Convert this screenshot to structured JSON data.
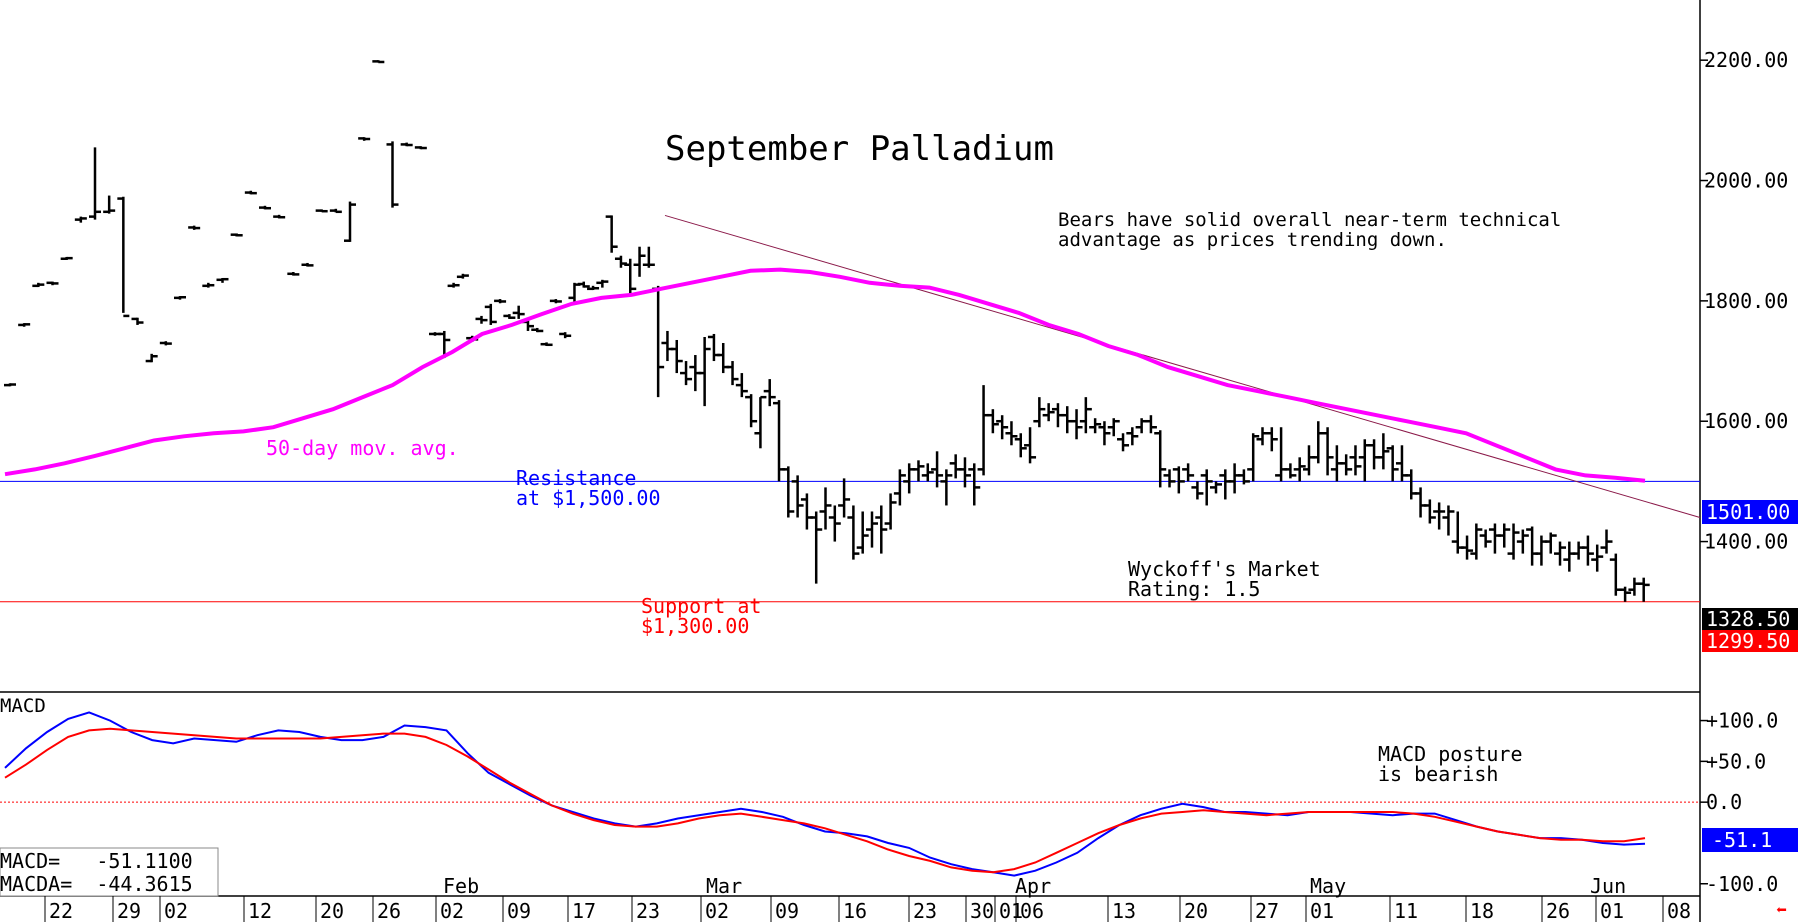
{
  "chart_data": [
    {
      "type": "ohlc",
      "title": "September Palladium",
      "ylim": [
        1150,
        2300
      ],
      "yticks": [
        1400,
        1600,
        1800,
        2000,
        2200
      ],
      "ytick_labels": [
        "1400.00",
        "1600.00",
        "1800.00",
        "2000.00",
        "2200.00"
      ],
      "months": [
        "Feb",
        "Mar",
        "Apr",
        "May",
        "Jun"
      ],
      "date_labels": [
        "22",
        "29",
        "02",
        "12",
        "20",
        "26",
        "02",
        "09",
        "17",
        "23",
        "02",
        "09",
        "16",
        "23",
        "30",
        "01",
        "06",
        "13",
        "20",
        "27",
        "01",
        "11",
        "18",
        "26",
        "01",
        "08"
      ],
      "annotations": {
        "commentary": "Bears have solid overall near-term technical advantage as prices trending down.",
        "ma_label": "50-day mov. avg.",
        "resistance_label_1": "Resistance",
        "resistance_label_2": "at $1,500.00",
        "support_label_1": "Support at",
        "support_label_2": "$1,300.00",
        "rating_label_1": "Wyckoff's Market",
        "rating_label_2": "Rating: 1.5"
      },
      "price_tags": {
        "ma_value": "1501.00",
        "last_price": "1328.50",
        "support_value": "1299.50"
      },
      "resistance_level": 1500,
      "support_level": 1300,
      "trendline": {
        "start": 1942,
        "end": 1440
      },
      "bars": [
        [
          1660,
          1663,
          1658,
          1661
        ],
        [
          1760,
          1763,
          1757,
          1761
        ],
        [
          1825,
          1830,
          1823,
          1827
        ],
        [
          1830,
          1832,
          1826,
          1829
        ],
        [
          1870,
          1873,
          1868,
          1871
        ],
        [
          1935,
          1940,
          1930,
          1937
        ],
        [
          1940,
          2055,
          1935,
          1948
        ],
        [
          1948,
          1975,
          1945,
          1950
        ],
        [
          1970,
          1973,
          1780,
          1775
        ],
        [
          1770,
          1772,
          1760,
          1764
        ],
        [
          1700,
          1712,
          1698,
          1708
        ],
        [
          1730,
          1733,
          1726,
          1729
        ],
        [
          1805,
          1808,
          1802,
          1806
        ],
        [
          1922,
          1925,
          1918,
          1921
        ],
        [
          1825,
          1830,
          1822,
          1826
        ],
        [
          1835,
          1838,
          1830,
          1836
        ],
        [
          1910,
          1912,
          1907,
          1909
        ],
        [
          1980,
          1983,
          1977,
          1979
        ],
        [
          1955,
          1958,
          1952,
          1954
        ],
        [
          1940,
          1943,
          1937,
          1939
        ],
        [
          1845,
          1848,
          1842,
          1844
        ],
        [
          1860,
          1863,
          1857,
          1859
        ],
        [
          1950,
          1952,
          1948,
          1949
        ],
        [
          1950,
          1953,
          1947,
          1948
        ],
        [
          1900,
          1965,
          1898,
          1960
        ],
        [
          2070,
          2072,
          2066,
          2069
        ],
        [
          2198,
          2200,
          2196,
          2197
        ],
        [
          2060,
          2065,
          1955,
          1960
        ],
        [
          2060,
          2063,
          2057,
          2059
        ],
        [
          2055,
          2057,
          2052,
          2054
        ]
      ],
      "bars2": [
        [
          1745,
          1748,
          1742,
          1745
        ],
        [
          1745,
          1750,
          1705,
          1735
        ],
        [
          1825,
          1830,
          1822,
          1826
        ],
        [
          1840,
          1845,
          1837,
          1842
        ],
        [
          1738,
          1742,
          1732,
          1736
        ],
        [
          1770,
          1775,
          1762,
          1768
        ],
        [
          1790,
          1795,
          1760,
          1765
        ],
        [
          1800,
          1803,
          1796,
          1799
        ],
        [
          1775,
          1778,
          1770,
          1772
        ],
        [
          1780,
          1792,
          1770,
          1778
        ],
        [
          1765,
          1770,
          1750,
          1758
        ],
        [
          1752,
          1755,
          1748,
          1750
        ],
        [
          1728,
          1731,
          1725,
          1727
        ],
        [
          1800,
          1803,
          1796,
          1799
        ],
        [
          1745,
          1748,
          1738,
          1742
        ],
        [
          1805,
          1830,
          1795,
          1827
        ],
        [
          1828,
          1832,
          1822,
          1824
        ],
        [
          1820,
          1825,
          1818,
          1821
        ],
        [
          1830,
          1835,
          1822,
          1832
        ],
        [
          1940,
          1942,
          1880,
          1890
        ],
        [
          1870,
          1875,
          1855,
          1862
        ],
        [
          1860,
          1870,
          1810,
          1820
        ],
        [
          1860,
          1890,
          1840,
          1875
        ],
        [
          1860,
          1890,
          1855,
          1860
        ],
        [
          1820,
          1825,
          1640,
          1690
        ],
        [
          1730,
          1750,
          1700,
          1720
        ],
        [
          1720,
          1735,
          1680,
          1700
        ],
        [
          1680,
          1700,
          1660,
          1670
        ],
        [
          1690,
          1710,
          1650,
          1680
        ],
        [
          1680,
          1740,
          1625,
          1720
        ],
        [
          1740,
          1745,
          1700,
          1710
        ],
        [
          1710,
          1730,
          1680,
          1690
        ],
        [
          1690,
          1700,
          1660,
          1670
        ],
        [
          1660,
          1680,
          1640,
          1650
        ],
        [
          1640,
          1645,
          1590,
          1600
        ],
        [
          1580,
          1640,
          1555,
          1640
        ],
        [
          1650,
          1670,
          1625,
          1640
        ],
        [
          1630,
          1635,
          1500,
          1520
        ],
        [
          1520,
          1525,
          1440,
          1450
        ],
        [
          1500,
          1510,
          1440,
          1460
        ],
        [
          1470,
          1480,
          1420,
          1440
        ],
        [
          1440,
          1450,
          1330,
          1420
        ],
        [
          1450,
          1490,
          1420,
          1460
        ],
        [
          1440,
          1460,
          1400,
          1430
        ],
        [
          1460,
          1505,
          1440,
          1470
        ],
        [
          1440,
          1460,
          1370,
          1380
        ],
        [
          1390,
          1450,
          1380,
          1410
        ],
        [
          1420,
          1450,
          1390,
          1430
        ],
        [
          1440,
          1460,
          1380,
          1420
        ],
        [
          1430,
          1480,
          1420,
          1465
        ],
        [
          1480,
          1520,
          1460,
          1510
        ],
        [
          1500,
          1530,
          1480,
          1520
        ],
        [
          1520,
          1535,
          1500,
          1525
        ],
        [
          1510,
          1530,
          1500,
          1515
        ],
        [
          1520,
          1550,
          1490,
          1510
        ],
        [
          1500,
          1520,
          1460,
          1510
        ],
        [
          1530,
          1545,
          1505,
          1520
        ],
        [
          1520,
          1540,
          1490,
          1510
        ],
        [
          1520,
          1530,
          1460,
          1490
        ],
        [
          1520,
          1660,
          1510,
          1610
        ],
        [
          1610,
          1620,
          1580,
          1595
        ],
        [
          1600,
          1610,
          1570,
          1590
        ],
        [
          1580,
          1600,
          1560,
          1575
        ],
        [
          1570,
          1580,
          1540,
          1555
        ],
        [
          1560,
          1590,
          1530,
          1540
        ],
        [
          1600,
          1640,
          1590,
          1620
        ],
        [
          1610,
          1630,
          1600,
          1615
        ],
        [
          1620,
          1630,
          1590,
          1610
        ],
        [
          1610,
          1625,
          1580,
          1600
        ],
        [
          1600,
          1620,
          1570,
          1590
        ],
        [
          1600,
          1640,
          1580,
          1620
        ],
        [
          1590,
          1605,
          1580,
          1595
        ],
        [
          1590,
          1600,
          1560,
          1580
        ],
        [
          1590,
          1605,
          1575,
          1600
        ],
        [
          1570,
          1580,
          1550,
          1560
        ],
        [
          1580,
          1590,
          1560,
          1575
        ],
        [
          1590,
          1605,
          1580,
          1600
        ],
        [
          1600,
          1610,
          1580,
          1590
        ],
        [
          1580,
          1585,
          1490,
          1520
        ],
        [
          1510,
          1520,
          1490,
          1500
        ],
        [
          1520,
          1525,
          1480,
          1500
        ],
        [
          1520,
          1530,
          1500,
          1510
        ],
        [
          1490,
          1500,
          1470,
          1480
        ],
        [
          1510,
          1520,
          1460,
          1500
        ],
        [
          1490,
          1500,
          1480,
          1495
        ],
        [
          1510,
          1520,
          1470,
          1500
        ],
        [
          1500,
          1530,
          1480,
          1510
        ],
        [
          1510,
          1520,
          1495,
          1500
        ],
        [
          1520,
          1580,
          1500,
          1575
        ],
        [
          1570,
          1590,
          1560,
          1580
        ],
        [
          1580,
          1590,
          1550,
          1570
        ],
        [
          1510,
          1590,
          1500,
          1520
        ],
        [
          1520,
          1530,
          1505,
          1510
        ],
        [
          1520,
          1540,
          1500,
          1525
        ],
        [
          1520,
          1560,
          1510,
          1540
        ],
        [
          1540,
          1600,
          1530,
          1580
        ],
        [
          1580,
          1590,
          1510,
          1540
        ],
        [
          1520,
          1560,
          1500,
          1530
        ],
        [
          1530,
          1545,
          1510,
          1520
        ],
        [
          1540,
          1560,
          1510,
          1525
        ],
        [
          1540,
          1570,
          1500,
          1560
        ],
        [
          1560,
          1570,
          1520,
          1540
        ],
        [
          1540,
          1580,
          1520,
          1550
        ],
        [
          1555,
          1560,
          1500,
          1520
        ],
        [
          1530,
          1560,
          1500,
          1510
        ],
        [
          1510,
          1520,
          1470,
          1480
        ],
        [
          1480,
          1490,
          1440,
          1460
        ],
        [
          1460,
          1470,
          1430,
          1440
        ],
        [
          1450,
          1465,
          1420,
          1450
        ],
        [
          1440,
          1460,
          1410,
          1450
        ],
        [
          1400,
          1450,
          1380,
          1390
        ],
        [
          1390,
          1410,
          1370,
          1385
        ],
        [
          1380,
          1430,
          1370,
          1420
        ],
        [
          1410,
          1420,
          1390,
          1400
        ],
        [
          1420,
          1430,
          1380,
          1410
        ],
        [
          1410,
          1430,
          1390,
          1420
        ],
        [
          1380,
          1430,
          1370,
          1415
        ],
        [
          1400,
          1420,
          1380,
          1410
        ],
        [
          1420,
          1425,
          1360,
          1380
        ],
        [
          1380,
          1410,
          1360,
          1400
        ],
        [
          1400,
          1415,
          1380,
          1410
        ],
        [
          1380,
          1400,
          1360,
          1390
        ],
        [
          1370,
          1400,
          1350,
          1380
        ],
        [
          1380,
          1400,
          1370,
          1390
        ],
        [
          1390,
          1410,
          1360,
          1380
        ],
        [
          1370,
          1395,
          1350,
          1375
        ],
        [
          1390,
          1420,
          1380,
          1400
        ],
        [
          1370,
          1380,
          1310,
          1320
        ],
        [
          1320,
          1325,
          1300,
          1315
        ],
        [
          1320,
          1340,
          1310,
          1330
        ],
        [
          1330,
          1340,
          1300,
          1328
        ]
      ],
      "ma": [
        1512,
        1520,
        1530,
        1542,
        1555,
        1568,
        1575,
        1580,
        1583,
        1590,
        1605,
        1620,
        1640,
        1660,
        1690,
        1715,
        1745,
        1760,
        1778,
        1795,
        1805,
        1810,
        1820,
        1830,
        1840,
        1850,
        1852,
        1848,
        1840,
        1830,
        1825,
        1822,
        1810,
        1795,
        1780,
        1760,
        1745,
        1725,
        1710,
        1690,
        1675,
        1660,
        1650,
        1640,
        1630,
        1620,
        1610,
        1600,
        1590,
        1580,
        1560,
        1540,
        1520,
        1510,
        1506,
        1501
      ]
    },
    {
      "type": "line",
      "title": "MACD",
      "ylim": [
        -115,
        135
      ],
      "yticks": [
        100,
        50,
        0,
        -100
      ],
      "ytick_labels": [
        "+100.0",
        "+50.0",
        "0.0",
        "-100.0"
      ],
      "annotation_1": "MACD posture",
      "annotation_2": "is bearish",
      "readout_macd": "MACD=   -51.1100",
      "readout_macda": "MACDA=  -44.3615",
      "value_tag": "-51.1",
      "series": [
        {
          "name": "MACD",
          "color": "#0000ff",
          "values": [
            42,
            66,
            86,
            102,
            110,
            100,
            86,
            76,
            72,
            78,
            76,
            74,
            82,
            88,
            86,
            80,
            76,
            76,
            80,
            94,
            92,
            88,
            60,
            36,
            22,
            8,
            -4,
            -12,
            -20,
            -26,
            -30,
            -26,
            -20,
            -16,
            -12,
            -8,
            -12,
            -18,
            -28,
            -36,
            -38,
            -42,
            -50,
            -56,
            -68,
            -76,
            -82,
            -86,
            -90,
            -84,
            -74,
            -62,
            -44,
            -28,
            -16,
            -8,
            -2,
            -6,
            -12,
            -12,
            -14,
            -16,
            -12,
            -12,
            -12,
            -14,
            -16,
            -14,
            -14,
            -22,
            -30,
            -36,
            -40,
            -44,
            -44,
            -46,
            -50,
            -52,
            -51
          ]
        },
        {
          "name": "MACDA",
          "color": "#ff0000",
          "values": [
            30,
            46,
            64,
            80,
            88,
            90,
            88,
            86,
            84,
            82,
            80,
            78,
            78,
            78,
            78,
            78,
            80,
            82,
            84,
            84,
            80,
            70,
            56,
            40,
            24,
            10,
            -4,
            -14,
            -22,
            -28,
            -30,
            -30,
            -26,
            -20,
            -16,
            -14,
            -18,
            -22,
            -26,
            -32,
            -40,
            -48,
            -58,
            -66,
            -72,
            -80,
            -84,
            -86,
            -82,
            -74,
            -62,
            -50,
            -38,
            -28,
            -20,
            -14,
            -12,
            -10,
            -12,
            -14,
            -16,
            -14,
            -12,
            -12,
            -12,
            -12,
            -12,
            -14,
            -18,
            -24,
            -30,
            -36,
            -40,
            -44,
            -46,
            -46,
            -48,
            -48,
            -44
          ]
        }
      ]
    }
  ],
  "colors": {
    "ma": "#ff00ff",
    "resistance": "#0000ff",
    "support": "#ff0000",
    "trendline": "#8b1a4a",
    "price_tag": "#000000",
    "macd": "#0000ff",
    "macda": "#ff0000"
  }
}
